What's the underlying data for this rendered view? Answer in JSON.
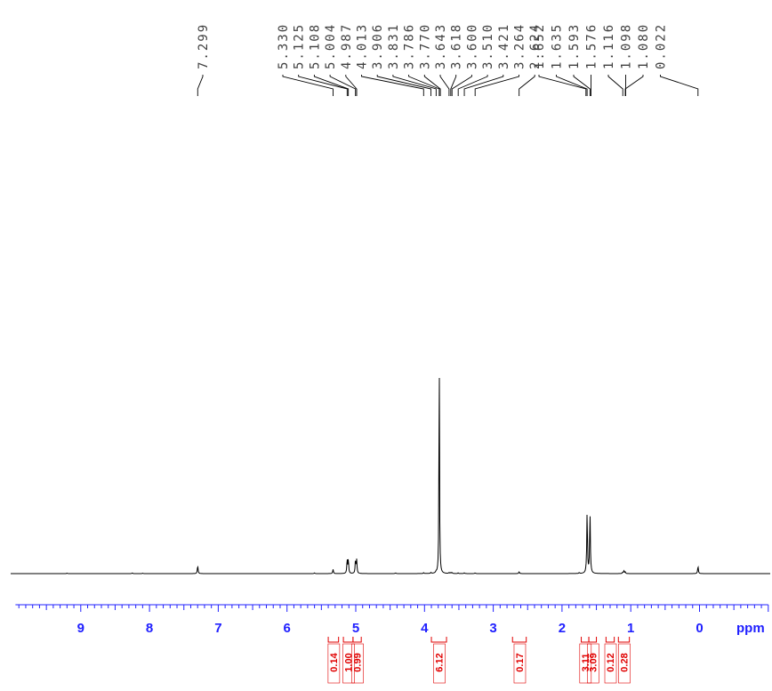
{
  "chart_data": {
    "type": "line",
    "title": "",
    "xlabel": "ppm",
    "ylabel": "",
    "x_reversed": true,
    "xlim": [
      9.95,
      -1.0
    ],
    "x_ticks": [
      "9",
      "8",
      "7",
      "6",
      "5",
      "4",
      "3",
      "2",
      "1",
      "0"
    ],
    "x_unit": "ppm",
    "series": [
      {
        "peaks": [
          {
            "ppm": 7.299,
            "height": 0.034
          },
          {
            "ppm": 5.33,
            "height": 0.018
          },
          {
            "ppm": 5.125,
            "height": 0.058
          },
          {
            "ppm": 5.108,
            "height": 0.058
          },
          {
            "ppm": 5.004,
            "height": 0.057
          },
          {
            "ppm": 4.987,
            "height": 0.057
          },
          {
            "ppm": 4.013,
            "height": 0.004
          },
          {
            "ppm": 3.906,
            "height": 0.004
          },
          {
            "ppm": 3.831,
            "height": 0.005
          },
          {
            "ppm": 3.786,
            "height": 1.0
          },
          {
            "ppm": 3.77,
            "height": 0.005
          },
          {
            "ppm": 3.643,
            "height": 0.004
          },
          {
            "ppm": 3.618,
            "height": 0.004
          },
          {
            "ppm": 3.6,
            "height": 0.004
          },
          {
            "ppm": 3.51,
            "height": 0.003
          },
          {
            "ppm": 3.421,
            "height": 0.003
          },
          {
            "ppm": 3.264,
            "height": 0.003
          },
          {
            "ppm": 2.624,
            "height": 0.008
          },
          {
            "ppm": 1.652,
            "height": 0.004
          },
          {
            "ppm": 1.635,
            "height": 0.259
          },
          {
            "ppm": 1.593,
            "height": 0.259
          },
          {
            "ppm": 1.576,
            "height": 0.004
          },
          {
            "ppm": 1.116,
            "height": 0.006
          },
          {
            "ppm": 1.098,
            "height": 0.012
          },
          {
            "ppm": 1.08,
            "height": 0.006
          },
          {
            "ppm": 0.022,
            "height": 0.032
          },
          {
            "ppm": 9.2,
            "height": 0.002
          },
          {
            "ppm": 8.25,
            "height": 0.003
          },
          {
            "ppm": 8.1,
            "height": 0.002
          },
          {
            "ppm": 5.6,
            "height": 0.003
          },
          {
            "ppm": 4.42,
            "height": 0.003
          },
          {
            "ppm": 1.75,
            "height": 0.004
          }
        ]
      }
    ],
    "peak_labels": [
      "7.299",
      "5.330",
      "5.125",
      "5.108",
      "5.004",
      "4.987",
      "4.013",
      "3.906",
      "3.831",
      "3.786",
      "3.770",
      "3.643",
      "3.618",
      "3.600",
      "3.510",
      "3.421",
      "3.264",
      "2.624",
      "1.652",
      "1.635",
      "1.593",
      "1.576",
      "1.116",
      "1.098",
      "1.080",
      "0.022"
    ],
    "integrals": [
      {
        "from": 5.4,
        "to": 5.25,
        "value": "0.14"
      },
      {
        "from": 5.18,
        "to": 5.04,
        "value": "1.00"
      },
      {
        "from": 5.04,
        "to": 4.92,
        "value": "0.99"
      },
      {
        "from": 3.9,
        "to": 3.68,
        "value": "6.12"
      },
      {
        "from": 2.72,
        "to": 2.52,
        "value": "0.17"
      },
      {
        "from": 1.72,
        "to": 1.61,
        "value": "3.11"
      },
      {
        "from": 1.61,
        "to": 1.5,
        "value": "3.09"
      },
      {
        "from": 1.36,
        "to": 1.24,
        "value": "0.12"
      },
      {
        "from": 1.18,
        "to": 1.02,
        "value": "0.28"
      }
    ],
    "colors": {
      "axis_text": "#2020ff",
      "integral": "#e00000",
      "spectrum": "#000000",
      "peak_label": "#404040"
    }
  }
}
